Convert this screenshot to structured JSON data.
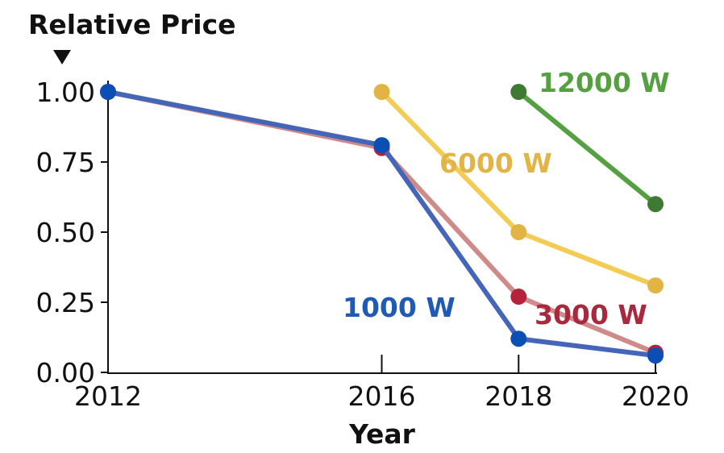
{
  "chart_data": {
    "type": "line",
    "title": "Relative Price",
    "xlabel": "Year",
    "ylabel": "Relative Price",
    "x_ticks": [
      "2012",
      "2016",
      "2018",
      "2020"
    ],
    "y_ticks": [
      "0.00",
      "0.25",
      "0.50",
      "0.75",
      "1.00"
    ],
    "xlim": [
      2012,
      2020
    ],
    "ylim": [
      0,
      1
    ],
    "grid": false,
    "series": [
      {
        "name": "3000 W",
        "x": [
          2012,
          2016,
          2018,
          2020
        ],
        "values": [
          1.0,
          0.8,
          0.27,
          0.07
        ],
        "line_color": "#cf8a8a",
        "marker_color": "#b5223a",
        "label_color": "#a8283e"
      },
      {
        "name": "1000 W",
        "x": [
          2012,
          2016,
          2018,
          2020
        ],
        "values": [
          1.0,
          0.81,
          0.12,
          0.06
        ],
        "line_color": "#4565b8",
        "marker_color": "#0b4fb5",
        "label_color": "#1f5bb5"
      },
      {
        "name": "6000 W",
        "x": [
          2016,
          2018,
          2020
        ],
        "values": [
          1.0,
          0.5,
          0.31
        ],
        "line_color": "#f3cc55",
        "marker_color": "#e2b445",
        "label_color": "#e2b445"
      },
      {
        "name": "12000 W",
        "x": [
          2018,
          2020
        ],
        "values": [
          1.0,
          0.6
        ],
        "line_color": "#55a040",
        "marker_color": "#3f7a35",
        "label_color": "#55a040"
      }
    ]
  }
}
